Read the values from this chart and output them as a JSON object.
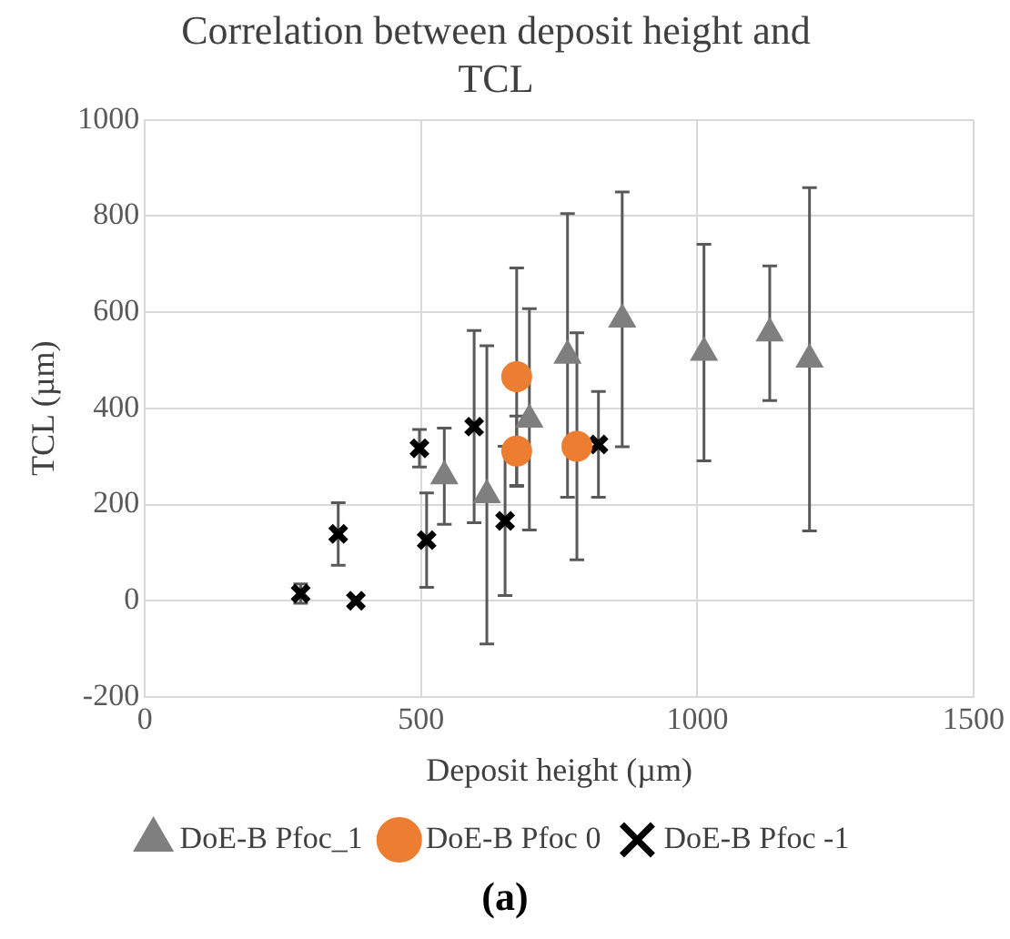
{
  "chart_data": {
    "type": "scatter",
    "title": "Correlation between deposit height and TCL",
    "xlabel": "Deposit height (µm)",
    "ylabel": "TCL (µm)",
    "series": [
      {
        "name": "DoE-B Pfoc_1",
        "color": "#7f7f7f",
        "marker": "triangle",
        "x": [
          542,
          619,
          696,
          765,
          864,
          1012,
          1131,
          1203
        ],
        "values": [
          259,
          220,
          377,
          510,
          585,
          516,
          556,
          502
        ],
        "errors": [
          100,
          310,
          230,
          295,
          265,
          225,
          140,
          357
        ]
      },
      {
        "name": "DoE-B Pfoc 0",
        "color": "#ed7d31",
        "marker": "circle",
        "x": [
          673,
          673,
          782
        ],
        "values": [
          466,
          311,
          321
        ],
        "errors": [
          226,
          73,
          236
        ]
      },
      {
        "name": "DoE-B Pfoc -1",
        "color": "#000000",
        "marker": "cross",
        "x": [
          282,
          350,
          382,
          497,
          510,
          596,
          652,
          821
        ],
        "values": [
          15,
          139,
          0,
          317,
          126,
          362,
          166,
          325
        ],
        "errors": [
          20,
          65,
          null,
          39,
          98,
          200,
          155,
          110
        ]
      }
    ],
    "xlim": [
      0,
      1500
    ],
    "xticks": [
      0,
      500,
      1000,
      1500
    ],
    "ylim": [
      -200,
      1000
    ],
    "yticks": [
      -200,
      0,
      200,
      400,
      600,
      800,
      1000
    ],
    "grid": true,
    "legend": "bottom",
    "annotations": [
      "(a)"
    ]
  }
}
